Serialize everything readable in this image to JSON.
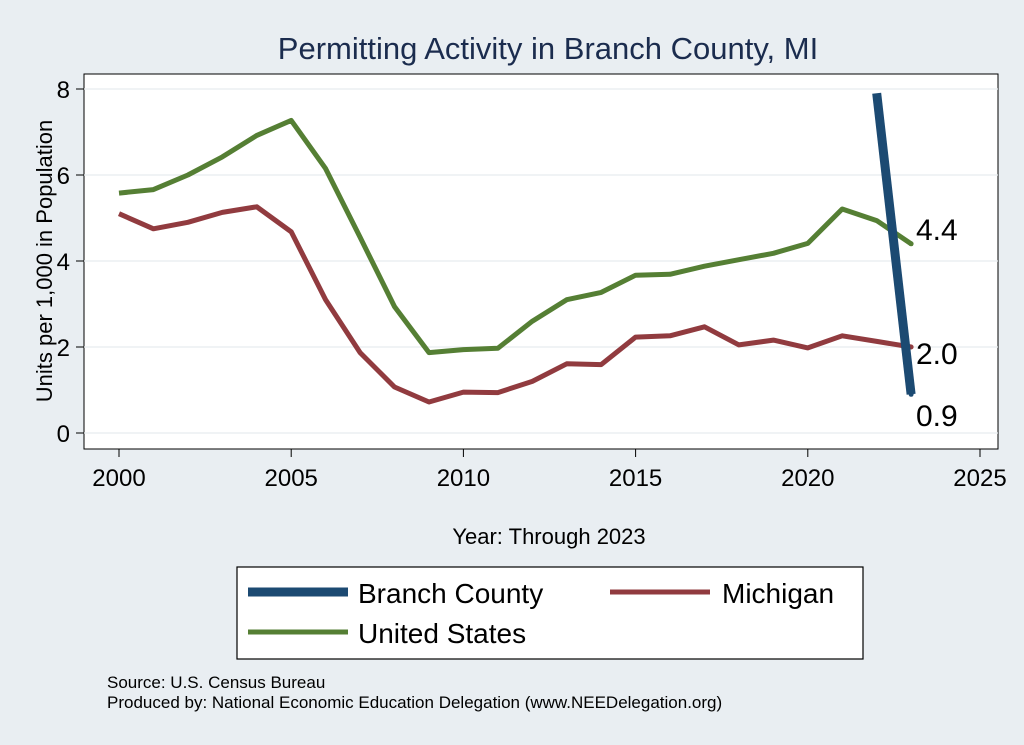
{
  "chart_data": {
    "type": "line",
    "title": "Permitting Activity in Branch County, MI",
    "xlabel": "Year: Through 2023",
    "ylabel": "Units per 1,000 in Population",
    "xlim": [
      2000,
      2025
    ],
    "ylim": [
      0,
      8
    ],
    "x_ticks": [
      "2000",
      "2005",
      "2010",
      "2015",
      "2020",
      "2025"
    ],
    "y_ticks": [
      "0",
      "2",
      "4",
      "6",
      "8"
    ],
    "grid": true,
    "legend_position": "bottom",
    "series": [
      {
        "name": "Branch County",
        "color": "#1c4a72",
        "x": [
          2022,
          2023
        ],
        "values": [
          7.9,
          0.9
        ],
        "end_label": "0.9"
      },
      {
        "name": "Michigan",
        "color": "#913b3f",
        "x": [
          2000,
          2001,
          2002,
          2003,
          2004,
          2005,
          2006,
          2007,
          2008,
          2009,
          2010,
          2011,
          2012,
          2013,
          2014,
          2015,
          2016,
          2017,
          2018,
          2019,
          2020,
          2021,
          2022,
          2023
        ],
        "values": [
          5.1,
          4.75,
          4.9,
          5.13,
          5.26,
          4.68,
          3.1,
          1.87,
          1.07,
          0.72,
          0.95,
          0.94,
          1.2,
          1.61,
          1.59,
          2.23,
          2.26,
          2.47,
          2.05,
          2.16,
          1.98,
          2.26,
          2.13,
          2.0
        ],
        "end_label": "2.0"
      },
      {
        "name": "United States",
        "color": "#557f34",
        "x": [
          2000,
          2001,
          2002,
          2003,
          2004,
          2005,
          2006,
          2007,
          2008,
          2009,
          2010,
          2011,
          2012,
          2013,
          2014,
          2015,
          2016,
          2017,
          2018,
          2019,
          2020,
          2021,
          2022,
          2023
        ],
        "values": [
          5.58,
          5.66,
          6.0,
          6.42,
          6.92,
          7.27,
          6.15,
          4.55,
          2.94,
          1.87,
          1.94,
          1.97,
          2.6,
          3.1,
          3.27,
          3.67,
          3.69,
          3.88,
          4.03,
          4.18,
          4.41,
          5.21,
          4.94,
          4.4
        ],
        "end_label": "4.4"
      }
    ],
    "legend": [
      "Branch County",
      "Michigan",
      "United States"
    ]
  },
  "footer": {
    "source": "Source: U.S. Census Bureau",
    "produced_by": "Produced by: National Economic Education Delegation (www.NEEDelegation.org)"
  }
}
